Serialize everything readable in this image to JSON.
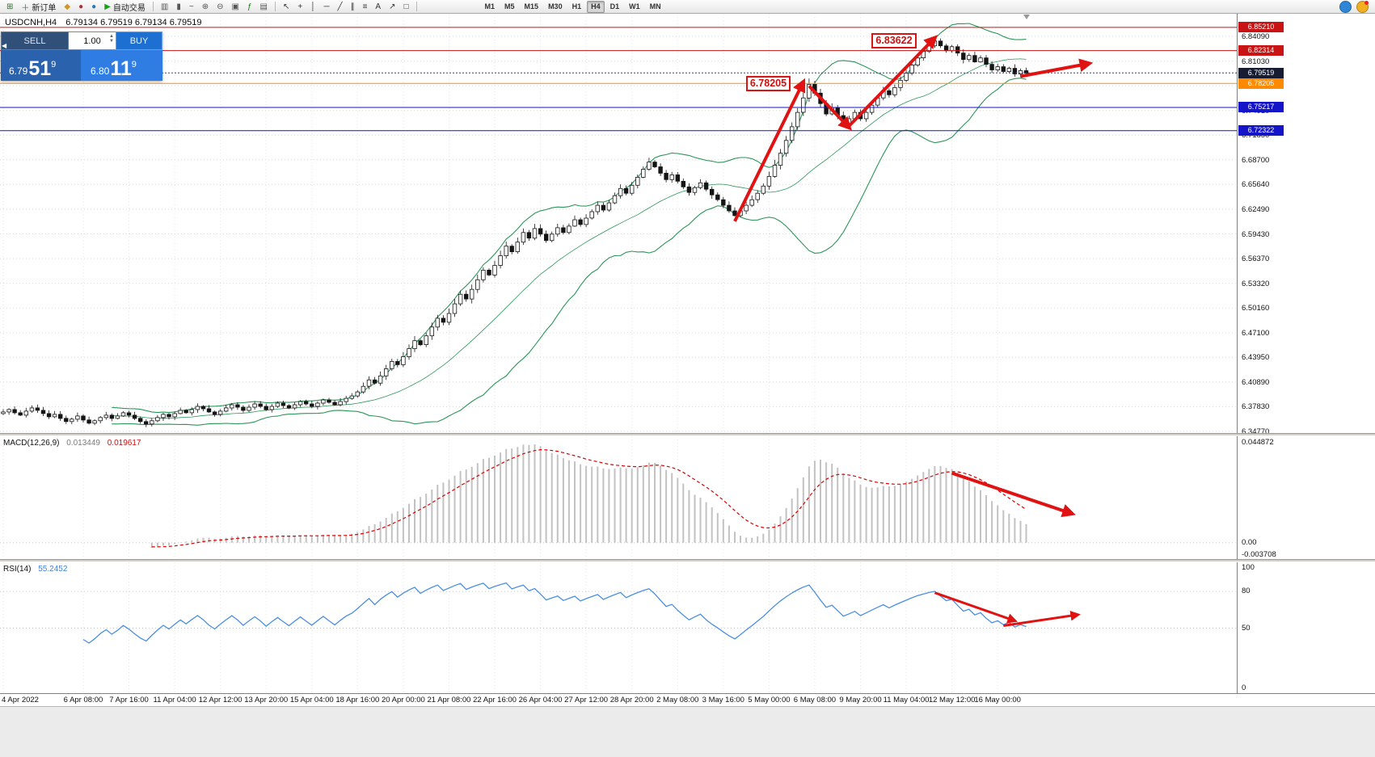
{
  "chart_header": {
    "symbol_tf": "USDCNH,H4",
    "ohlc": "6.79134 6.79519 6.79134 6.79519"
  },
  "toolbar": {
    "groups": [
      [
        {
          "name": "new-chart-icon",
          "glyph": "⊞",
          "color": "#2f6b2f"
        },
        {
          "name": "new-order-button",
          "glyph": "＋",
          "color": "#1a8a1a",
          "label": "新订单"
        },
        {
          "name": "profiles-icon",
          "glyph": "◆",
          "color": "#c9992a"
        },
        {
          "name": "alerts-icon",
          "glyph": "●",
          "color": "#b03030"
        },
        {
          "name": "web-terminal-icon",
          "glyph": "●",
          "color": "#2a7ab0"
        },
        {
          "name": "auto-trading-button",
          "glyph": "▶",
          "color": "#18a018",
          "label": "自动交易"
        }
      ],
      [
        {
          "name": "bar-chart-icon",
          "glyph": "▥",
          "color": "#555555"
        },
        {
          "name": "candlestick-chart-icon",
          "glyph": "▮",
          "color": "#555555"
        },
        {
          "name": "line-chart-icon",
          "glyph": "~",
          "color": "#555555"
        },
        {
          "name": "zoom-in-icon",
          "glyph": "⊕",
          "color": "#555555"
        },
        {
          "name": "zoom-out-icon",
          "glyph": "⊖",
          "color": "#555555"
        },
        {
          "name": "tile-windows-icon",
          "glyph": "▣",
          "color": "#555555"
        },
        {
          "name": "indicators-icon",
          "glyph": "ƒ",
          "color": "#1a7a1a"
        },
        {
          "name": "templates-icon",
          "glyph": "▤",
          "color": "#555555"
        }
      ],
      [
        {
          "name": "cursor-icon",
          "glyph": "↖",
          "color": "#333333"
        },
        {
          "name": "crosshair-icon",
          "glyph": "+",
          "color": "#333333"
        },
        {
          "name": "vertical-line-icon",
          "glyph": "│",
          "color": "#333333"
        },
        {
          "name": "horizontal-line-icon",
          "glyph": "─",
          "color": "#333333"
        },
        {
          "name": "trendline-icon",
          "glyph": "╱",
          "color": "#333333"
        },
        {
          "name": "channel-icon",
          "glyph": "∥",
          "color": "#333333"
        },
        {
          "name": "fibonacci-icon",
          "glyph": "≡",
          "color": "#333333"
        },
        {
          "name": "text-icon",
          "glyph": "A",
          "color": "#333333"
        },
        {
          "name": "arrows-icon",
          "glyph": "↗",
          "color": "#333333"
        },
        {
          "name": "shapes-icon",
          "glyph": "□",
          "color": "#333333"
        }
      ]
    ],
    "timeframes": [
      "M1",
      "M5",
      "M15",
      "M30",
      "H1",
      "H4",
      "D1",
      "W1",
      "MN"
    ],
    "active_timeframe": "H4",
    "right_icons": [
      {
        "name": "community-icon",
        "color": "#2f86d6",
        "dot": false
      },
      {
        "name": "market-icon",
        "color": "#f2b01e",
        "dot": true
      }
    ]
  },
  "trade_panel": {
    "sell_label": "SELL",
    "buy_label": "BUY",
    "volume": "1.00",
    "bid_prefix": "6.79",
    "bid_main": "51",
    "bid_sup": "9",
    "ask_prefix": "6.80",
    "ask_main": "11",
    "ask_sup": "9"
  },
  "price_axis": {
    "labels": [
      "6.84090",
      "6.81030",
      "6.77970",
      "6.74910",
      "6.71850",
      "6.68700",
      "6.65640",
      "6.62490",
      "6.59430",
      "6.56370",
      "6.53320",
      "6.50160",
      "6.47100",
      "6.43950",
      "6.40890",
      "6.37830",
      "6.34770"
    ]
  },
  "hlines": [
    {
      "price": 6.8521,
      "label": "6.85210",
      "color": "#c81414",
      "tag": "#c81414",
      "dotted": false
    },
    {
      "price": 6.82314,
      "label": "6.82314",
      "color": "#c81414",
      "tag": "#c81414",
      "dotted": false
    },
    {
      "price": 6.79519,
      "label": "6.79519",
      "color": "#3c4260",
      "tag": "#171c33",
      "dotted": true
    },
    {
      "price": 6.78205,
      "label": "6.78205",
      "color": "#ff8a00",
      "tag": "#ff8a00",
      "dotted": false
    },
    {
      "price": 6.75217,
      "label": "6.75217",
      "color": "#1414c8",
      "tag": "#1414c8",
      "dotted": false
    },
    {
      "price": 6.72322,
      "label": "6.72322",
      "color": "#1414c8",
      "tag": "#1414c8",
      "dotted": false
    }
  ],
  "annotations": [
    {
      "text": "6.83622",
      "idx": 163,
      "price": 6.83622
    },
    {
      "text": "6.78205",
      "idx": 141,
      "price": 6.78205
    }
  ],
  "trend_arrows": [
    {
      "idx1": 128,
      "p1": 6.61,
      "idx2": 140,
      "p2": 6.784
    },
    {
      "idx1": 141,
      "p1": 6.779,
      "idx2": 148,
      "p2": 6.727
    },
    {
      "idx1": 148,
      "p1": 6.729,
      "idx2": 163,
      "p2": 6.839
    },
    {
      "idx1": 178,
      "p1": 6.791,
      "idx2": 190,
      "p2": 6.807
    }
  ],
  "macd": {
    "name": "MACD(12,26,9)",
    "value_main": "0.013449",
    "value_signal": "0.019617",
    "axis_max": "0.044872",
    "axis_zero": "0.00",
    "axis_min": "-0.003708",
    "arrow": {
      "idx1": 166,
      "f1": 0.3,
      "idx2": 187,
      "f2": 0.63
    }
  },
  "rsi": {
    "name": "RSI(14)",
    "value": "55.2452",
    "axis_max": "100",
    "axis_min": "0",
    "levels": [
      80,
      50
    ],
    "arrows": [
      {
        "idx1": 163,
        "v1": 79,
        "idx2": 177,
        "v2": 56
      },
      {
        "idx1": 175,
        "v1": 52,
        "idx2": 188,
        "v2": 61
      }
    ]
  },
  "time_axis": [
    {
      "text": "4 Apr 2022",
      "idx": 0
    },
    {
      "text": "6 Apr 08:00",
      "idx": 14
    },
    {
      "text": "7 Apr 16:00",
      "idx": 22
    },
    {
      "text": "11 Apr 04:00",
      "idx": 30
    },
    {
      "text": "12 Apr 12:00",
      "idx": 38
    },
    {
      "text": "13 Apr 20:00",
      "idx": 46
    },
    {
      "text": "15 Apr 04:00",
      "idx": 54
    },
    {
      "text": "18 Apr 16:00",
      "idx": 62
    },
    {
      "text": "20 Apr 00:00",
      "idx": 70
    },
    {
      "text": "21 Apr 08:00",
      "idx": 78
    },
    {
      "text": "22 Apr 16:00",
      "idx": 86
    },
    {
      "text": "26 Apr 04:00",
      "idx": 94
    },
    {
      "text": "27 Apr 12:00",
      "idx": 102
    },
    {
      "text": "28 Apr 20:00",
      "idx": 110
    },
    {
      "text": "2 May 08:00",
      "idx": 118
    },
    {
      "text": "3 May 16:00",
      "idx": 126
    },
    {
      "text": "5 May 00:00",
      "idx": 134
    },
    {
      "text": "6 May 08:00",
      "idx": 142
    },
    {
      "text": "9 May 20:00",
      "idx": 150
    },
    {
      "text": "11 May 04:00",
      "idx": 158
    },
    {
      "text": "12 May 12:00",
      "idx": 166
    },
    {
      "text": "16 May 00:00",
      "idx": 174
    }
  ],
  "chart_data": {
    "type": "candlestick",
    "symbol": "USDCNH",
    "timeframe": "H4",
    "indicators": [
      "Bollinger Bands(20,2)",
      "MACD(12,26,9)",
      "RSI(14)"
    ],
    "bollinger_period": 20,
    "bollinger_dev": 2,
    "closes": [
      6.372,
      6.375,
      6.371,
      6.368,
      6.373,
      6.377,
      6.374,
      6.37,
      6.366,
      6.369,
      6.364,
      6.36,
      6.363,
      6.367,
      6.362,
      6.358,
      6.361,
      6.365,
      6.368,
      6.364,
      6.367,
      6.371,
      6.368,
      6.364,
      6.36,
      6.357,
      6.361,
      6.365,
      6.369,
      6.366,
      6.37,
      6.374,
      6.371,
      6.375,
      6.379,
      6.376,
      6.372,
      6.369,
      6.373,
      6.377,
      6.381,
      6.378,
      6.374,
      6.378,
      6.382,
      6.379,
      6.375,
      6.379,
      6.383,
      6.38,
      6.377,
      6.381,
      6.385,
      6.382,
      6.379,
      6.383,
      6.387,
      6.384,
      6.381,
      6.385,
      6.389,
      6.392,
      6.397,
      6.404,
      6.412,
      6.408,
      6.417,
      6.426,
      6.435,
      6.431,
      6.441,
      6.451,
      6.461,
      6.456,
      6.467,
      6.478,
      6.489,
      6.484,
      6.495,
      6.507,
      6.519,
      6.513,
      6.525,
      6.537,
      6.549,
      6.543,
      6.555,
      6.567,
      6.579,
      6.572,
      6.584,
      6.596,
      6.589,
      6.601,
      6.594,
      6.586,
      6.594,
      6.602,
      6.596,
      6.604,
      6.612,
      6.606,
      6.614,
      6.622,
      6.63,
      6.624,
      6.633,
      6.642,
      6.651,
      6.645,
      6.655,
      6.665,
      6.675,
      6.684,
      6.678,
      6.67,
      6.662,
      6.668,
      6.66,
      6.653,
      6.646,
      6.652,
      6.658,
      6.65,
      6.643,
      6.637,
      6.63,
      6.623,
      6.617,
      6.623,
      6.63,
      6.637,
      6.645,
      6.654,
      6.666,
      6.68,
      6.695,
      6.711,
      6.728,
      6.746,
      6.764,
      6.781,
      6.77,
      6.757,
      6.744,
      6.752,
      6.742,
      6.731,
      6.738,
      6.746,
      6.738,
      6.746,
      6.755,
      6.764,
      6.773,
      6.768,
      6.777,
      6.786,
      6.795,
      6.805,
      6.814,
      6.822,
      6.829,
      6.835,
      6.829,
      6.823,
      6.828,
      6.82,
      6.812,
      6.817,
      6.809,
      6.814,
      6.806,
      6.799,
      6.803,
      6.797,
      6.801,
      6.794,
      6.798,
      6.795
    ]
  }
}
